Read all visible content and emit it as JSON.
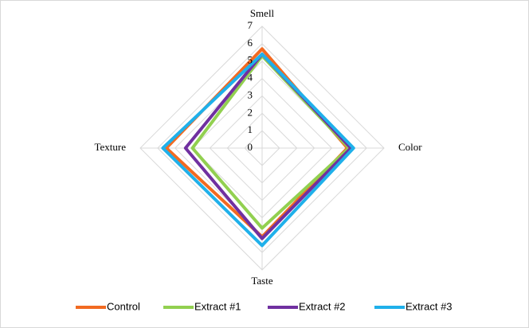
{
  "chart_data": {
    "type": "radar",
    "categories": [
      "Smell",
      "Color",
      "Taste",
      "Texture"
    ],
    "rlim": [
      0,
      7
    ],
    "rticks": [
      0,
      1,
      2,
      3,
      4,
      5,
      6,
      7
    ],
    "grid": true,
    "legend": "bottom",
    "series": [
      {
        "name": "Control",
        "color": "#f26a21",
        "values": [
          5.7,
          4.9,
          5.1,
          5.5
        ]
      },
      {
        "name": "Extract #1",
        "color": "#92d050",
        "values": [
          5.3,
          5.0,
          4.6,
          4.0
        ]
      },
      {
        "name": "Extract #2",
        "color": "#7030a0",
        "values": [
          5.4,
          5.1,
          5.2,
          4.4
        ]
      },
      {
        "name": "Extract #3",
        "color": "#1fb0ea",
        "values": [
          5.4,
          5.25,
          5.6,
          5.7
        ]
      }
    ]
  }
}
